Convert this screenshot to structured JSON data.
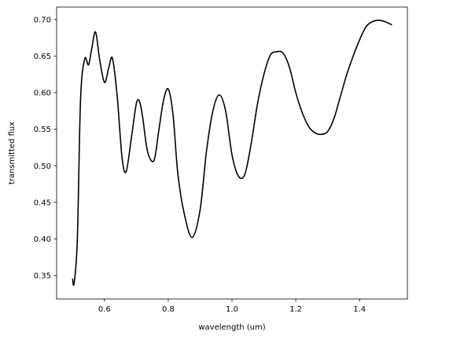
{
  "chart_data": {
    "type": "line",
    "title": "",
    "xlabel": "wavelength (um)",
    "ylabel": "transmitted flux",
    "xlim": [
      0.45,
      1.55
    ],
    "ylim": [
      0.318,
      0.717
    ],
    "xticks": [
      0.6,
      0.8,
      1.0,
      1.2,
      1.4
    ],
    "xtick_labels": [
      "0.6",
      "0.8",
      "1.0",
      "1.2",
      "1.4"
    ],
    "yticks": [
      0.35,
      0.4,
      0.45,
      0.5,
      0.55,
      0.6,
      0.65,
      0.7
    ],
    "ytick_labels": [
      "0.35",
      "0.40",
      "0.45",
      "0.50",
      "0.55",
      "0.60",
      "0.65",
      "0.70"
    ],
    "grid": false,
    "legend": "none",
    "series": [
      {
        "color": "#000000",
        "x": [
          0.5,
          0.505,
          0.515,
          0.525,
          0.538,
          0.55,
          0.56,
          0.572,
          0.585,
          0.6,
          0.613,
          0.625,
          0.64,
          0.655,
          0.668,
          0.685,
          0.7,
          0.71,
          0.72,
          0.735,
          0.755,
          0.77,
          0.785,
          0.8,
          0.815,
          0.83,
          0.85,
          0.875,
          0.9,
          0.92,
          0.94,
          0.96,
          0.98,
          1.0,
          1.02,
          1.04,
          1.06,
          1.08,
          1.1,
          1.12,
          1.14,
          1.16,
          1.18,
          1.2,
          1.22,
          1.24,
          1.26,
          1.28,
          1.3,
          1.32,
          1.34,
          1.36,
          1.38,
          1.4,
          1.42,
          1.44,
          1.46,
          1.48,
          1.49,
          1.5
        ],
        "y": [
          0.345,
          0.34,
          0.4,
          0.59,
          0.646,
          0.638,
          0.66,
          0.683,
          0.645,
          0.614,
          0.633,
          0.647,
          0.595,
          0.512,
          0.492,
          0.54,
          0.585,
          0.588,
          0.566,
          0.52,
          0.507,
          0.547,
          0.589,
          0.605,
          0.57,
          0.49,
          0.435,
          0.402,
          0.44,
          0.52,
          0.575,
          0.597,
          0.575,
          0.515,
          0.486,
          0.488,
          0.53,
          0.585,
          0.625,
          0.651,
          0.656,
          0.654,
          0.635,
          0.6,
          0.573,
          0.554,
          0.545,
          0.543,
          0.547,
          0.565,
          0.595,
          0.625,
          0.65,
          0.672,
          0.69,
          0.697,
          0.699,
          0.697,
          0.695,
          0.693
        ]
      }
    ]
  }
}
